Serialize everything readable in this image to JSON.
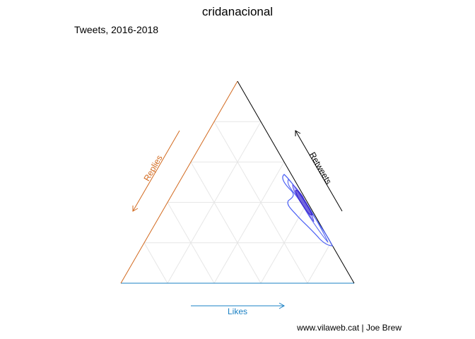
{
  "chart_data": {
    "type": "ternary-density",
    "title": "cridanacional",
    "subtitle": "Tweets, 2016-2018",
    "caption": "www.vilaweb.cat | Joe Brew",
    "axes": {
      "likes": {
        "label": "Likes",
        "color": "#1a80c4"
      },
      "replies": {
        "label": "Replies",
        "color": "#d2691e"
      },
      "retweets": {
        "label": "Retweets",
        "color": "#000000"
      }
    },
    "grid": true,
    "grid_ticks": [
      0.2,
      0.4,
      0.6,
      0.8
    ],
    "density": {
      "peak_mixed": [
        0.08,
        0.47
      ],
      "contour_color": "#4a5ff5",
      "fill_color": "#3333cc"
    }
  }
}
